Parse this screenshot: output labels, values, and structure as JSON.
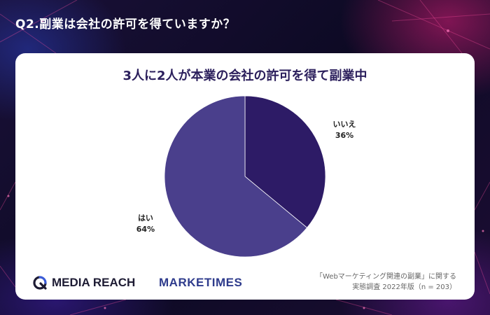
{
  "header": {
    "title": "Q2.副業は会社の許可を得ていますか？"
  },
  "chart_data": {
    "type": "pie",
    "title": "3人に2人が本業の会社の許可を得て副業中",
    "slices": [
      {
        "label": "いいえ",
        "value": 36,
        "display": "36%",
        "color": "#2d1b66"
      },
      {
        "label": "はい",
        "value": 64,
        "display": "64%",
        "color": "#4a3f8c"
      }
    ],
    "start_angle_deg": 0,
    "direction": "clockwise",
    "labels_outside": true
  },
  "footer": {
    "logo_media_reach": "MEDIA REACH",
    "logo_marketimes": "MARKETIMES",
    "source_line1": "「Webマーケティング関連の副業」に関する",
    "source_line2": "実態調査 2022年版（n = 203）"
  },
  "colors": {
    "card_bg": "#ffffff",
    "title_color": "#2b1f5c",
    "brand_dark": "#1d1b33",
    "brand_blue": "#2e3b8c"
  }
}
